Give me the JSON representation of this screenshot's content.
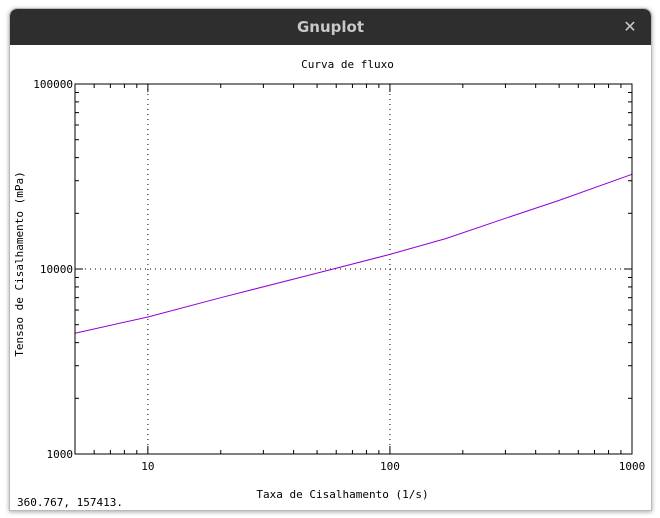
{
  "window": {
    "title": "Gnuplot",
    "close_symbol": "✕"
  },
  "status_text": "360.767,  157413.",
  "chart_data": {
    "type": "line",
    "title": "Curva de fluxo",
    "xlabel": "Taxa de Cisalhamento (1/s)",
    "ylabel": "Tensao de Cisalhamento (mPa)",
    "xscale": "log",
    "yscale": "log",
    "xlim": [
      5,
      1000
    ],
    "ylim": [
      1000,
      100000
    ],
    "x_ticks": [
      {
        "value": 10,
        "label": "10"
      },
      {
        "value": 100,
        "label": "100"
      },
      {
        "value": 1000,
        "label": "1000"
      }
    ],
    "y_ticks": [
      {
        "value": 1000,
        "label": "1000"
      },
      {
        "value": 10000,
        "label": "10000"
      },
      {
        "value": 100000,
        "label": "100000"
      }
    ],
    "grid": true,
    "series": [
      {
        "color": "#9400d3",
        "x": [
          5,
          10,
          20,
          50,
          100,
          170,
          300,
          500,
          1000
        ],
        "y": [
          4500,
          5500,
          7000,
          9500,
          12000,
          14600,
          18800,
          23500,
          32500
        ]
      }
    ]
  }
}
